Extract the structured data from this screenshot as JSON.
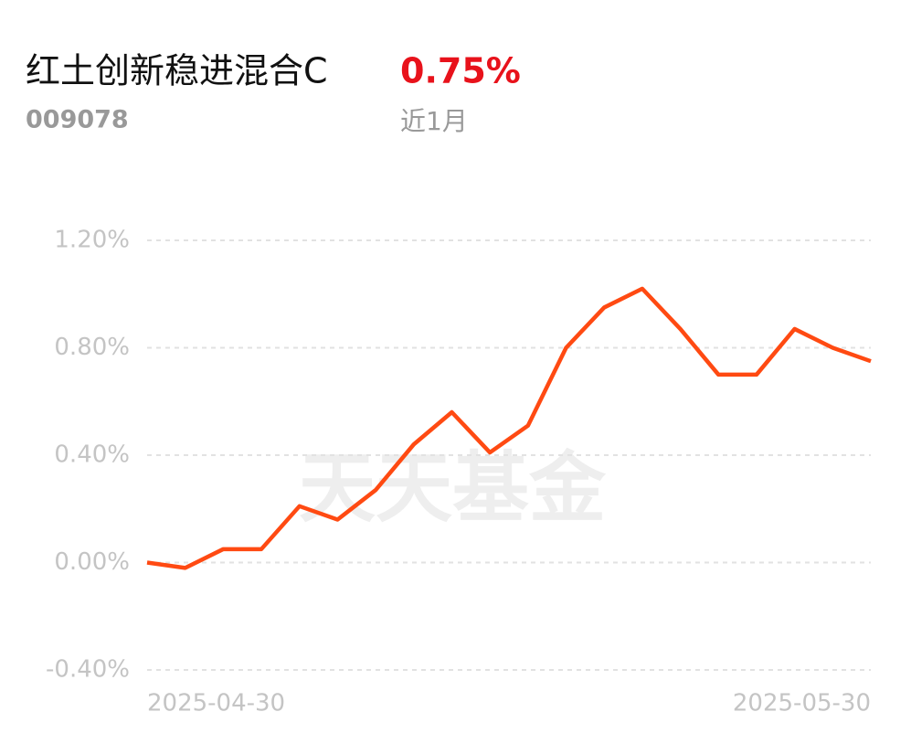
{
  "header": {
    "title": "红土创新稳进混合C",
    "code": "009078",
    "return": "0.75%",
    "period": "近1月"
  },
  "chart_data": {
    "type": "line",
    "watermark": "天天基金",
    "categories": [
      "2025-04-30",
      null,
      null,
      null,
      null,
      null,
      null,
      null,
      null,
      null,
      null,
      null,
      null,
      null,
      null,
      null,
      null,
      null,
      null,
      "2025-05-30"
    ],
    "values": [
      0.0,
      -0.02,
      0.05,
      0.05,
      0.21,
      0.16,
      0.27,
      0.44,
      0.56,
      0.41,
      0.51,
      0.8,
      0.95,
      1.02,
      0.87,
      0.7,
      0.7,
      0.87,
      0.8,
      0.75
    ],
    "color": "#ff4a12",
    "ylim": [
      -0.4,
      1.2
    ],
    "yticks": [
      {
        "value": -0.4,
        "label": "-0.40%"
      },
      {
        "value": 0,
        "label": "0.00%"
      },
      {
        "value": 0.4,
        "label": "0.40%"
      },
      {
        "value": 0.8,
        "label": "0.80%"
      },
      {
        "value": 1.2,
        "label": "1.20%"
      }
    ],
    "grid": true
  }
}
